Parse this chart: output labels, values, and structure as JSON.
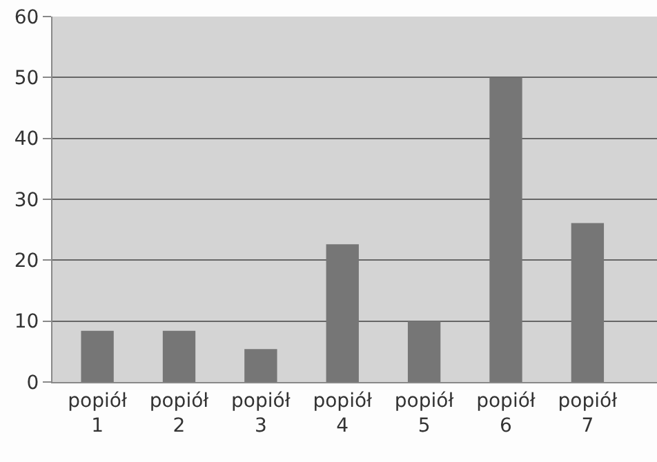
{
  "chart_data": {
    "type": "bar",
    "categories": [
      "popiół 1",
      "popiół 2",
      "popiół 3",
      "popiół 4",
      "popiół 5",
      "popiół 6",
      "popiół 7"
    ],
    "values": [
      8.4,
      8.4,
      5.4,
      22.6,
      10,
      50,
      26.1
    ],
    "color": "#767676",
    "ylim": [
      0,
      60
    ],
    "yticks": [
      0,
      10,
      20,
      30,
      40,
      50,
      60
    ],
    "grid": "y",
    "legend": false
  }
}
